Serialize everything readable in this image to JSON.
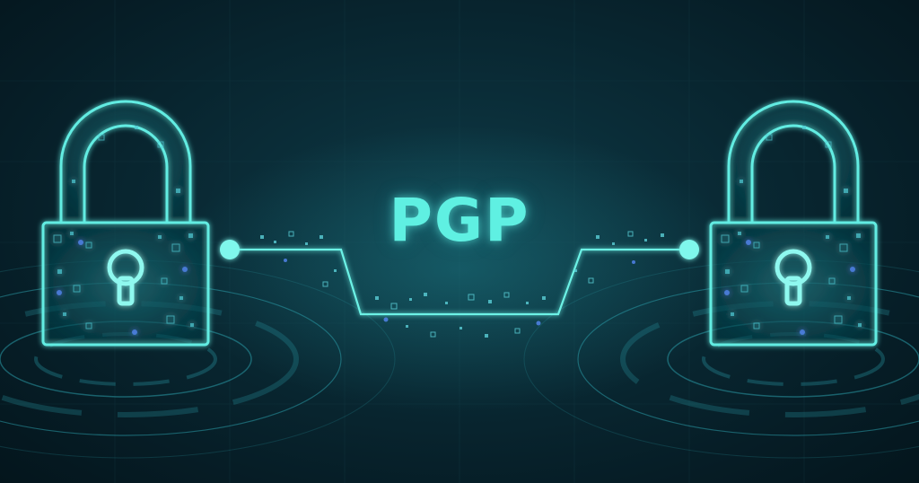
{
  "title": {
    "text": "PGP"
  },
  "colors": {
    "background": "#0a2c37",
    "accent": "#5ff0e2",
    "glow": "#3fd6d8",
    "dot_blue": "#5a8cff"
  },
  "icons": {
    "left": "padlock-icon",
    "right": "padlock-icon",
    "connector": "circuit-line",
    "rings": "circular-hud-rings"
  }
}
